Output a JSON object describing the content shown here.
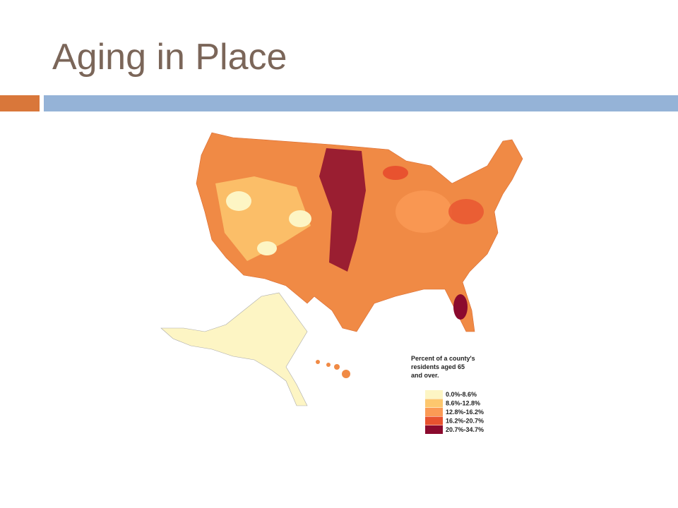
{
  "header": {
    "title": "Aging in Place"
  },
  "map": {
    "legend": {
      "title_lines": [
        "Percent of a county's",
        "residents aged 65",
        "and over."
      ],
      "items": [
        {
          "label": "0.0%-8.6%",
          "color": "#fdf5c4"
        },
        {
          "label": "8.6%-12.8%",
          "color": "#fdc76e"
        },
        {
          "label": "12.8%-16.2%",
          "color": "#fb9a55"
        },
        {
          "label": "16.2%-20.7%",
          "color": "#e8522f"
        },
        {
          "label": "20.7%-34.7%",
          "color": "#8b0a2e"
        }
      ]
    }
  }
}
